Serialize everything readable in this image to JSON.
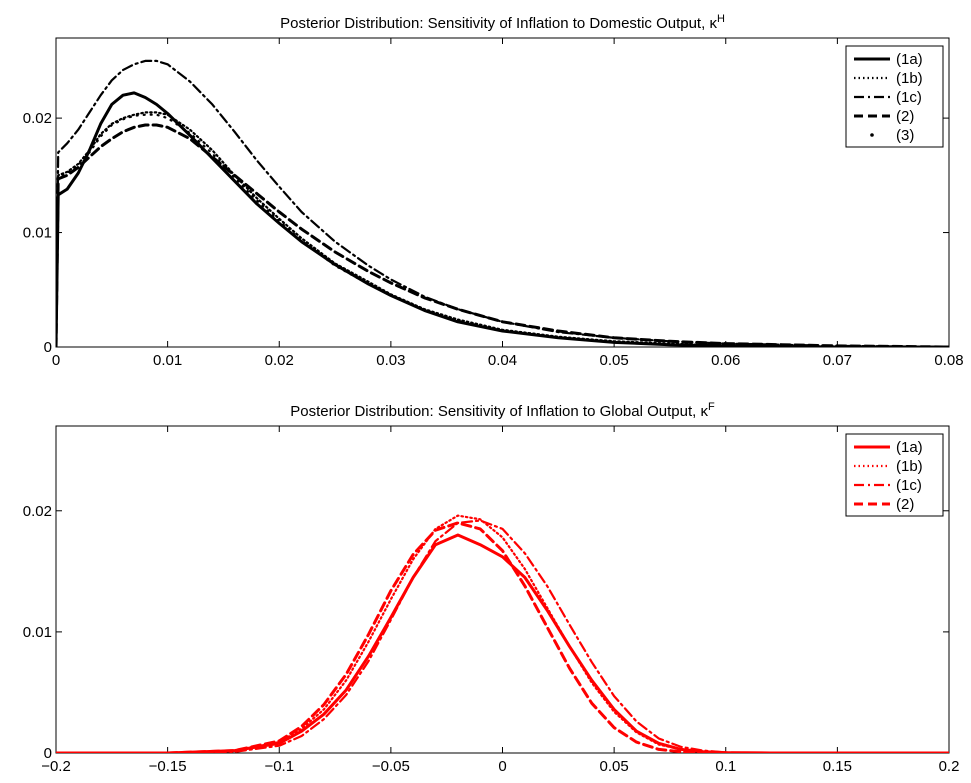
{
  "chart_data": [
    {
      "type": "line",
      "title": "Posterior Distribution: Sensitivity of Inflation to Domestic Output, κ",
      "title_superscript": "H",
      "xlabel": "",
      "ylabel": "",
      "xlim": [
        0,
        0.08
      ],
      "ylim": [
        0,
        0.027
      ],
      "xticks": [
        0,
        0.01,
        0.02,
        0.03,
        0.04,
        0.05,
        0.06,
        0.07,
        0.08
      ],
      "xtick_labels": [
        "0",
        "0.01",
        "0.02",
        "0.03",
        "0.04",
        "0.05",
        "0.06",
        "0.07",
        "0.08"
      ],
      "yticks": [
        0,
        0.01,
        0.02
      ],
      "ytick_labels": [
        "0",
        "0.01",
        "0.02"
      ],
      "grid": false,
      "legend_position": "top-right",
      "color": "#000000",
      "series": [
        {
          "name": "(1a)",
          "style": "solid",
          "x": [
            0,
            0.0002,
            0.001,
            0.002,
            0.003,
            0.004,
            0.005,
            0.006,
            0.007,
            0.008,
            0.009,
            0.01,
            0.012,
            0.014,
            0.016,
            0.018,
            0.02,
            0.022,
            0.025,
            0.028,
            0.03,
            0.033,
            0.036,
            0.04,
            0.045,
            0.05,
            0.055,
            0.06,
            0.065,
            0.07,
            0.075,
            0.08
          ],
          "y": [
            0.0,
            0.0133,
            0.0138,
            0.0152,
            0.0172,
            0.0195,
            0.0212,
            0.022,
            0.0222,
            0.0218,
            0.0212,
            0.0204,
            0.0185,
            0.0165,
            0.0145,
            0.0125,
            0.0108,
            0.0092,
            0.0072,
            0.0055,
            0.0045,
            0.0032,
            0.0022,
            0.0014,
            0.0008,
            0.0004,
            0.0002,
            0.0001,
            5e-05,
            0.0,
            0.0,
            0.0
          ]
        },
        {
          "name": "(1b)",
          "style": "dotted",
          "x": [
            0,
            0.0002,
            0.001,
            0.002,
            0.003,
            0.004,
            0.005,
            0.006,
            0.007,
            0.008,
            0.009,
            0.01,
            0.012,
            0.014,
            0.016,
            0.018,
            0.02,
            0.022,
            0.025,
            0.028,
            0.03,
            0.033,
            0.036,
            0.04,
            0.045,
            0.05,
            0.055,
            0.06,
            0.065,
            0.07,
            0.075,
            0.08
          ],
          "y": [
            0.0,
            0.015,
            0.0153,
            0.016,
            0.0172,
            0.0186,
            0.0195,
            0.02,
            0.0203,
            0.0205,
            0.0205,
            0.0203,
            0.019,
            0.0172,
            0.015,
            0.013,
            0.0112,
            0.0095,
            0.0073,
            0.0057,
            0.0046,
            0.0033,
            0.0024,
            0.0015,
            0.0009,
            0.0005,
            0.0003,
            0.0001,
            5e-05,
            0.0,
            0.0,
            0.0
          ]
        },
        {
          "name": "(1c)",
          "style": "dashdot",
          "x": [
            0,
            0.0002,
            0.001,
            0.002,
            0.003,
            0.004,
            0.005,
            0.006,
            0.007,
            0.008,
            0.009,
            0.01,
            0.012,
            0.014,
            0.016,
            0.018,
            0.02,
            0.022,
            0.025,
            0.028,
            0.03,
            0.033,
            0.036,
            0.04,
            0.045,
            0.05,
            0.055,
            0.06,
            0.065,
            0.07,
            0.075,
            0.08
          ],
          "y": [
            0.0,
            0.017,
            0.0178,
            0.019,
            0.0205,
            0.022,
            0.0233,
            0.0242,
            0.0247,
            0.025,
            0.025,
            0.0247,
            0.0232,
            0.0212,
            0.0188,
            0.0163,
            0.014,
            0.0118,
            0.0092,
            0.0071,
            0.0059,
            0.0044,
            0.0033,
            0.0022,
            0.0013,
            0.0008,
            0.0005,
            0.0003,
            0.0002,
            0.0001,
            5e-05,
            0.0
          ]
        },
        {
          "name": "(2)",
          "style": "dashed",
          "x": [
            0,
            0.0002,
            0.001,
            0.002,
            0.003,
            0.004,
            0.005,
            0.006,
            0.007,
            0.008,
            0.009,
            0.01,
            0.012,
            0.014,
            0.016,
            0.018,
            0.02,
            0.022,
            0.025,
            0.028,
            0.03,
            0.033,
            0.036,
            0.04,
            0.045,
            0.05,
            0.055,
            0.06,
            0.065,
            0.07,
            0.075,
            0.08
          ],
          "y": [
            0.0,
            0.0147,
            0.015,
            0.0157,
            0.0166,
            0.0175,
            0.0182,
            0.0188,
            0.0192,
            0.0194,
            0.0194,
            0.0192,
            0.0182,
            0.0166,
            0.015,
            0.0134,
            0.0118,
            0.0103,
            0.0083,
            0.0066,
            0.0056,
            0.0043,
            0.0033,
            0.0022,
            0.0014,
            0.0008,
            0.0005,
            0.0003,
            0.0002,
            0.0001,
            5e-05,
            0.0
          ]
        },
        {
          "name": "(3)",
          "style": "point",
          "x": [
            0,
            0.0002,
            0.001,
            0.002,
            0.003,
            0.004,
            0.005,
            0.006,
            0.007,
            0.008,
            0.009,
            0.01,
            0.012,
            0.014,
            0.016,
            0.018,
            0.02,
            0.022,
            0.025,
            0.028,
            0.03,
            0.033,
            0.036,
            0.04,
            0.045,
            0.05,
            0.055,
            0.06,
            0.065,
            0.07,
            0.075,
            0.08
          ],
          "y": [
            0.0,
            0.0149,
            0.0152,
            0.0159,
            0.017,
            0.0184,
            0.0194,
            0.0199,
            0.0202,
            0.0203,
            0.0203,
            0.02,
            0.0187,
            0.0169,
            0.0148,
            0.0128,
            0.011,
            0.0093,
            0.0071,
            0.0055,
            0.0045,
            0.0032,
            0.0023,
            0.0014,
            0.0008,
            0.0004,
            0.0002,
            0.0001,
            5e-05,
            0.0,
            0.0,
            0.0
          ]
        }
      ]
    },
    {
      "type": "line",
      "title": "Posterior Distribution: Sensitivity of Inflation to Global Output, κ",
      "title_superscript": "F",
      "xlabel": "",
      "ylabel": "",
      "xlim": [
        -0.2,
        0.2
      ],
      "ylim": [
        0,
        0.027
      ],
      "xticks": [
        -0.2,
        -0.15,
        -0.1,
        -0.05,
        0,
        0.05,
        0.1,
        0.15,
        0.2
      ],
      "xtick_labels": [
        "−0.2",
        "−0.15",
        "−0.1",
        "−0.05",
        "0",
        "0.05",
        "0.1",
        "0.15",
        "0.2"
      ],
      "yticks": [
        0,
        0.01,
        0.02
      ],
      "ytick_labels": [
        "0",
        "0.01",
        "0.02"
      ],
      "grid": false,
      "legend_position": "top-right",
      "color": "#ff0000",
      "series": [
        {
          "name": "(1a)",
          "style": "solid",
          "x": [
            -0.2,
            -0.15,
            -0.12,
            -0.1,
            -0.09,
            -0.08,
            -0.07,
            -0.06,
            -0.05,
            -0.04,
            -0.03,
            -0.02,
            -0.01,
            0.0,
            0.01,
            0.02,
            0.03,
            0.04,
            0.05,
            0.06,
            0.07,
            0.08,
            0.09,
            0.1,
            0.12,
            0.15,
            0.2
          ],
          "y": [
            0.0,
            0.0,
            0.0002,
            0.0008,
            0.0018,
            0.0032,
            0.0052,
            0.008,
            0.0112,
            0.0145,
            0.0172,
            0.018,
            0.0172,
            0.0162,
            0.0145,
            0.0118,
            0.0088,
            0.006,
            0.0036,
            0.0018,
            0.0008,
            0.0003,
            0.0001,
            3e-05,
            0.0,
            0.0,
            0.0
          ]
        },
        {
          "name": "(1b)",
          "style": "dotted",
          "x": [
            -0.2,
            -0.15,
            -0.12,
            -0.1,
            -0.09,
            -0.08,
            -0.07,
            -0.06,
            -0.05,
            -0.04,
            -0.03,
            -0.02,
            -0.01,
            0.0,
            0.01,
            0.02,
            0.03,
            0.04,
            0.05,
            0.06,
            0.07,
            0.08,
            0.09,
            0.1,
            0.12,
            0.15,
            0.2
          ],
          "y": [
            0.0,
            0.0,
            0.0002,
            0.0009,
            0.002,
            0.0036,
            0.006,
            0.0092,
            0.0127,
            0.016,
            0.0185,
            0.0196,
            0.0193,
            0.0178,
            0.0152,
            0.012,
            0.0088,
            0.0058,
            0.0034,
            0.0017,
            0.0007,
            0.0003,
            0.0001,
            3e-05,
            0.0,
            0.0,
            0.0
          ]
        },
        {
          "name": "(1c)",
          "style": "dashdot",
          "x": [
            -0.2,
            -0.15,
            -0.12,
            -0.1,
            -0.09,
            -0.08,
            -0.07,
            -0.06,
            -0.05,
            -0.04,
            -0.03,
            -0.02,
            -0.01,
            0.0,
            0.01,
            0.02,
            0.03,
            0.04,
            0.05,
            0.06,
            0.07,
            0.08,
            0.09,
            0.1,
            0.12,
            0.15,
            0.2
          ],
          "y": [
            0.0,
            0.0,
            0.0001,
            0.0006,
            0.0014,
            0.0028,
            0.0048,
            0.0076,
            0.011,
            0.0145,
            0.0175,
            0.019,
            0.0192,
            0.0185,
            0.0165,
            0.0138,
            0.0106,
            0.0075,
            0.0047,
            0.0026,
            0.0012,
            0.0005,
            0.0002,
            5e-05,
            0.0,
            0.0,
            0.0
          ]
        },
        {
          "name": "(2)",
          "style": "dashed",
          "x": [
            -0.2,
            -0.15,
            -0.12,
            -0.1,
            -0.09,
            -0.08,
            -0.07,
            -0.06,
            -0.05,
            -0.04,
            -0.03,
            -0.02,
            -0.01,
            0.0,
            0.01,
            0.02,
            0.03,
            0.04,
            0.05,
            0.06,
            0.07,
            0.08,
            0.09,
            0.1,
            0.12,
            0.15,
            0.2
          ],
          "y": [
            0.0,
            0.0,
            0.0002,
            0.001,
            0.0022,
            0.004,
            0.0065,
            0.0098,
            0.0134,
            0.0164,
            0.0184,
            0.019,
            0.0185,
            0.0167,
            0.0138,
            0.0104,
            0.007,
            0.0041,
            0.0021,
            0.0009,
            0.0003,
            0.0001,
            0.0,
            0.0,
            0.0,
            0.0,
            0.0
          ]
        }
      ]
    }
  ]
}
